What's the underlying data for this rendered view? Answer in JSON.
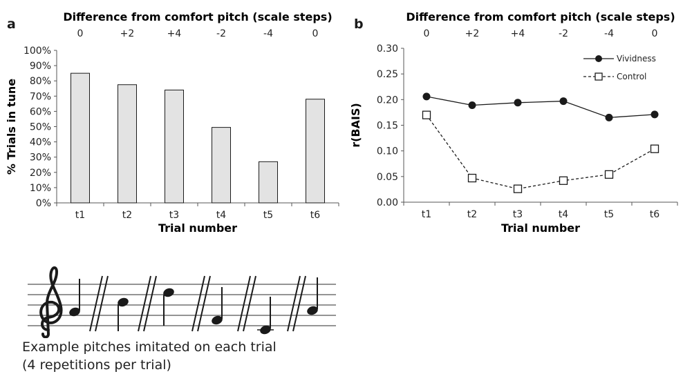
{
  "panels": [
    {
      "letter": "a"
    },
    {
      "letter": "b"
    }
  ],
  "chart_data": [
    {
      "type": "bar",
      "top_axis_title": "Difference from comfort pitch (scale steps)",
      "top_ticks": [
        "0",
        "+2",
        "+4",
        "-2",
        "-4",
        "0"
      ],
      "categories": [
        "t1",
        "t2",
        "t3",
        "t4",
        "t5",
        "t6"
      ],
      "values": [
        85,
        77.5,
        74,
        49.5,
        27,
        68
      ],
      "xlabel": "Trial number",
      "ylabel": "% Trials in tune",
      "ylim": [
        0,
        100
      ],
      "yticks": [
        "0%",
        "10%",
        "20%",
        "30%",
        "40%",
        "50%",
        "60%",
        "70%",
        "80%",
        "90%",
        "100%"
      ],
      "bar_color": "#e3e3e3",
      "grid": false
    },
    {
      "type": "line",
      "top_axis_title": "Difference from comfort pitch (scale steps)",
      "top_ticks": [
        "0",
        "+2",
        "+4",
        "-2",
        "-4",
        "0"
      ],
      "categories": [
        "t1",
        "t2",
        "t3",
        "t4",
        "t5",
        "t6"
      ],
      "series": [
        {
          "name": "Vividness",
          "values": [
            0.206,
            0.189,
            0.194,
            0.197,
            0.165,
            0.171
          ],
          "marker": "filled-circle",
          "line": "solid"
        },
        {
          "name": "Control",
          "values": [
            0.17,
            0.047,
            0.026,
            0.042,
            0.054,
            0.104
          ],
          "marker": "open-square",
          "line": "dashed"
        }
      ],
      "xlabel": "Trial number",
      "ylabel": "r(BAIS)",
      "ylim": [
        0,
        0.3
      ],
      "yticks": [
        "0.00",
        "0.05",
        "0.10",
        "0.15",
        "0.20",
        "0.25",
        "0.30"
      ],
      "legend_position": "top-right",
      "grid": false
    }
  ],
  "caption": {
    "line1": "Example pitches imitated on each trial",
    "line2": "(4 repetitions per trial)"
  },
  "staff_icons": [
    "treble-clef-icon",
    "note-icon",
    "slash-icon"
  ]
}
